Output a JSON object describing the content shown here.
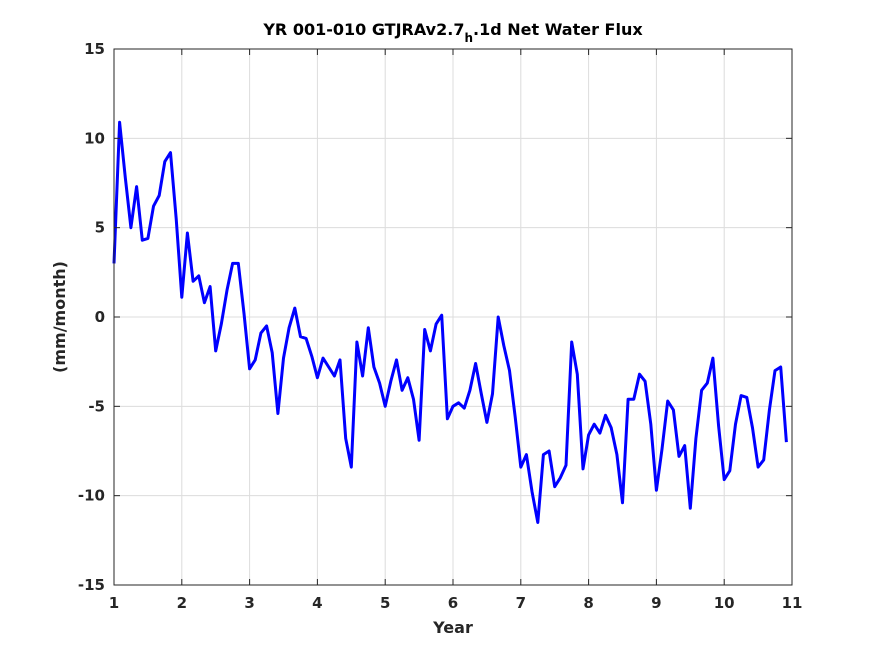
{
  "chart_data": {
    "type": "line",
    "title_main": "YR 001-010 GTJRAv2.7",
    "title_sub": "h",
    "title_rest": ".1d Net Water Flux",
    "xlabel": "Year",
    "ylabel": "(mm/month)",
    "xlim": [
      1,
      11
    ],
    "ylim": [
      -15,
      15
    ],
    "xticks": [
      1,
      2,
      3,
      4,
      5,
      6,
      7,
      8,
      9,
      10,
      11
    ],
    "yticks": [
      -15,
      -10,
      -5,
      0,
      5,
      10,
      15
    ],
    "grid": true,
    "line_color": "#0000ff",
    "x": [
      1.0,
      1.083,
      1.167,
      1.25,
      1.333,
      1.417,
      1.5,
      1.583,
      1.667,
      1.75,
      1.833,
      1.917,
      2.0,
      2.083,
      2.167,
      2.25,
      2.333,
      2.417,
      2.5,
      2.583,
      2.667,
      2.75,
      2.833,
      2.917,
      3.0,
      3.083,
      3.167,
      3.25,
      3.333,
      3.417,
      3.5,
      3.583,
      3.667,
      3.75,
      3.833,
      3.917,
      4.0,
      4.083,
      4.167,
      4.25,
      4.333,
      4.417,
      4.5,
      4.583,
      4.667,
      4.75,
      4.833,
      4.917,
      5.0,
      5.083,
      5.167,
      5.25,
      5.333,
      5.417,
      5.5,
      5.583,
      5.667,
      5.75,
      5.833,
      5.917,
      6.0,
      6.083,
      6.167,
      6.25,
      6.333,
      6.417,
      6.5,
      6.583,
      6.667,
      6.75,
      6.833,
      6.917,
      7.0,
      7.083,
      7.167,
      7.25,
      7.333,
      7.417,
      7.5,
      7.583,
      7.667,
      7.75,
      7.833,
      7.917,
      8.0,
      8.083,
      8.167,
      8.25,
      8.333,
      8.417,
      8.5,
      8.583,
      8.667,
      8.75,
      8.833,
      8.917,
      9.0,
      9.083,
      9.167,
      9.25,
      9.333,
      9.417,
      9.5,
      9.583,
      9.667,
      9.75,
      9.833,
      9.917,
      10.0,
      10.083,
      10.167,
      10.25,
      10.333,
      10.417,
      10.5,
      10.583,
      10.667,
      10.75,
      10.833,
      10.917
    ],
    "series": [
      {
        "values": [
          3.0,
          10.9,
          7.8,
          5.0,
          7.3,
          4.3,
          4.4,
          6.2,
          6.8,
          8.7,
          9.2,
          5.5,
          1.1,
          4.7,
          2.0,
          2.3,
          0.8,
          1.7,
          -1.9,
          -0.4,
          1.5,
          3.0,
          3.0,
          0.2,
          -2.9,
          -2.4,
          -0.9,
          -0.5,
          -2.0,
          -5.4,
          -2.3,
          -0.6,
          0.5,
          -1.1,
          -1.2,
          -2.2,
          -3.4,
          -2.3,
          -2.8,
          -3.3,
          -2.4,
          -6.8,
          -8.4,
          -1.4,
          -3.3,
          -0.6,
          -2.8,
          -3.7,
          -5.0,
          -3.6,
          -2.4,
          -4.1,
          -3.4,
          -4.6,
          -6.9,
          -0.7,
          -1.9,
          -0.4,
          0.1,
          -5.7,
          -5.0,
          -4.8,
          -5.1,
          -4.1,
          -2.6,
          -4.3,
          -5.9,
          -4.3,
          0.0,
          -1.6,
          -3.0,
          -5.6,
          -8.4,
          -7.7,
          -9.8,
          -11.5,
          -7.7,
          -7.5,
          -9.5,
          -9.0,
          -8.3,
          -1.4,
          -3.2,
          -8.5,
          -6.6,
          -6.0,
          -6.5,
          -5.5,
          -6.2,
          -7.7,
          -10.4,
          -4.6,
          -4.6,
          -3.2,
          -3.6,
          -6.0,
          -9.7,
          -7.4,
          -4.7,
          -5.2,
          -7.8,
          -7.2,
          -10.7,
          -6.8,
          -4.1,
          -3.7,
          -2.3,
          -6.1,
          -9.1,
          -8.6,
          -6.0,
          -4.4,
          -4.5,
          -6.2,
          -8.4,
          -8.0,
          -5.2,
          -3.0,
          -2.8,
          -7.0
        ]
      }
    ]
  }
}
